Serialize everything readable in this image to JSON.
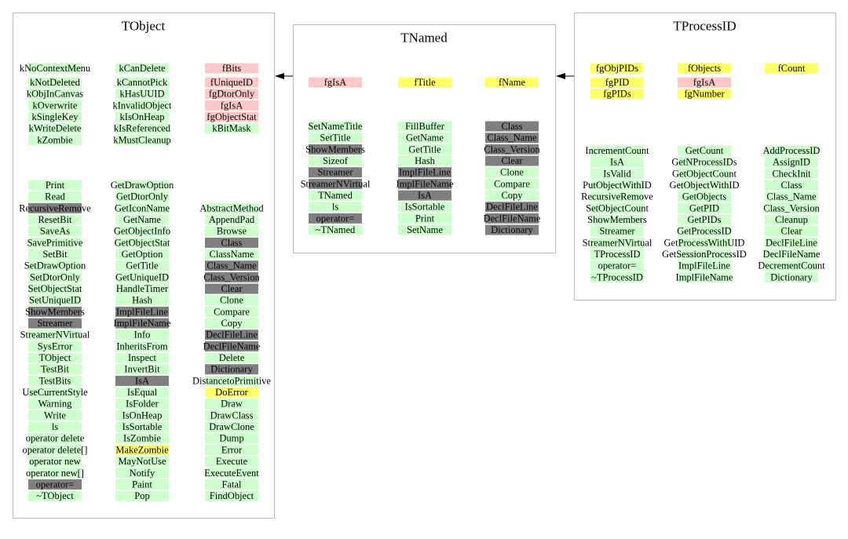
{
  "classes": [
    {
      "title": "TObject",
      "data_members": [
        [
          "kNoContextMenu",
          "kNotDeleted",
          "kObjInCanvas",
          "kOverwrite",
          "kSingleKey",
          "kWriteDelete",
          "kZombie"
        ],
        [
          "kCanDelete",
          "kCannotPick",
          "kHasUUID",
          "kInvalidObject",
          "kIsOnHeap",
          "kIsReferenced",
          "kMustCleanup"
        ],
        [
          {
            "label": "fBits",
            "color": "#ffc8c8"
          },
          {
            "label": "fUniqueID",
            "color": "#ffc8c8"
          },
          {
            "label": "fgDtorOnly",
            "color": "#ffc8c8"
          },
          {
            "label": "fgIsA",
            "color": "#ffc8c8"
          },
          {
            "label": "fgObjectStat",
            "color": "#ffc8c8"
          },
          "kBitMask"
        ]
      ],
      "methods": [
        [
          "Print",
          "Read",
          {
            "label": "RecursiveRemove",
            "color": "#7f7f7f"
          },
          "ResetBit",
          "SaveAs",
          "SavePrimitive",
          "SetBit",
          "SetDrawOption",
          "SetDtorOnly",
          "SetObjectStat",
          "SetUniqueID",
          {
            "label": "ShowMembers",
            "color": "#7f7f7f"
          },
          {
            "label": "Streamer",
            "color": "#7f7f7f"
          },
          "StreamerNVirtual",
          "SysError",
          "TObject",
          "TestBit",
          "TestBits",
          "UseCurrentStyle",
          "Warning",
          "Write",
          "ls",
          "operator delete",
          "operator delete[]",
          "operator new",
          "operator new[]",
          {
            "label": "operator=",
            "color": "#7f7f7f"
          },
          "~TObject"
        ],
        [
          "GetDrawOption",
          "GetDtorOnly",
          "GetIconName",
          "GetName",
          "GetObjectInfo",
          "GetObjectStat",
          "GetOption",
          "GetTitle",
          "GetUniqueID",
          "HandleTimer",
          "Hash",
          {
            "label": "ImplFileLine",
            "color": "#7f7f7f"
          },
          {
            "label": "ImplFileName",
            "color": "#7f7f7f"
          },
          "Info",
          "InheritsFrom",
          "Inspect",
          "InvertBit",
          {
            "label": "IsA",
            "color": "#7f7f7f"
          },
          "IsEqual",
          "IsFolder",
          "IsOnHeap",
          "IsSortable",
          "IsZombie",
          {
            "label": "MakeZombie",
            "color": "#ffff66"
          },
          "MayNotUse",
          "Notify",
          "Paint",
          "Pop"
        ],
        [
          "AbstractMethod",
          "AppendPad",
          "Browse",
          {
            "label": "Class",
            "color": "#7f7f7f"
          },
          "ClassName",
          {
            "label": "Class_Name",
            "color": "#7f7f7f"
          },
          {
            "label": "Class_Version",
            "color": "#7f7f7f"
          },
          {
            "label": "Clear",
            "color": "#7f7f7f"
          },
          "Clone",
          "Compare",
          "Copy",
          {
            "label": "DeclFileLine",
            "color": "#7f7f7f"
          },
          {
            "label": "DeclFileName",
            "color": "#7f7f7f"
          },
          "Delete",
          {
            "label": "Dictionary",
            "color": "#7f7f7f"
          },
          "DistancetoPrimitive",
          {
            "label": "DoError",
            "color": "#ffff66"
          },
          "Draw",
          "DrawClass",
          "DrawClone",
          "Dump",
          "Error",
          "Execute",
          "ExecuteEvent",
          "Fatal",
          "FindObject"
        ]
      ]
    },
    {
      "title": "TNamed",
      "data_members": [
        [
          {
            "label": "fgIsA",
            "color": "#ffc8c8"
          }
        ],
        [
          {
            "label": "fTitle",
            "color": "#ffff66"
          }
        ],
        [
          {
            "label": "fName",
            "color": "#ffff66"
          }
        ]
      ],
      "methods": [
        [
          "SetNameTitle",
          "SetTitle",
          {
            "label": "ShowMembers",
            "color": "#7f7f7f"
          },
          "Sizeof",
          {
            "label": "Streamer",
            "color": "#7f7f7f"
          },
          {
            "label": "StreamerNVirtual",
            "color": "#7f7f7f"
          },
          "TNamed",
          "ls",
          {
            "label": "operator=",
            "color": "#7f7f7f"
          },
          "~TNamed"
        ],
        [
          "FillBuffer",
          "GetName",
          "GetTitle",
          "Hash",
          {
            "label": "ImplFileLine",
            "color": "#7f7f7f"
          },
          {
            "label": "ImplFileName",
            "color": "#7f7f7f"
          },
          {
            "label": "IsA",
            "color": "#7f7f7f"
          },
          "IsSortable",
          "Print",
          "SetName"
        ],
        [
          {
            "label": "Class",
            "color": "#7f7f7f"
          },
          {
            "label": "Class_Name",
            "color": "#7f7f7f"
          },
          {
            "label": "Class_Version",
            "color": "#7f7f7f"
          },
          {
            "label": "Clear",
            "color": "#7f7f7f"
          },
          "Clone",
          "Compare",
          "Copy",
          {
            "label": "DeclFileLine",
            "color": "#7f7f7f"
          },
          {
            "label": "DeclFileName",
            "color": "#7f7f7f"
          },
          {
            "label": "Dictionary",
            "color": "#7f7f7f"
          }
        ]
      ]
    },
    {
      "title": "TProcessID",
      "data_members": [
        [
          {
            "label": "fgObjPIDs",
            "color": "#ffff66"
          },
          {
            "label": "fgPID",
            "color": "#ffff66"
          },
          {
            "label": "fgPIDs",
            "color": "#ffff66"
          }
        ],
        [
          {
            "label": "fObjects",
            "color": "#ffff66"
          },
          {
            "label": "fgIsA",
            "color": "#ffc8c8"
          },
          {
            "label": "fgNumber",
            "color": "#ffff66"
          }
        ],
        [
          {
            "label": "fCount",
            "color": "#ffff66"
          }
        ]
      ],
      "methods": [
        [
          "IncrementCount",
          "IsA",
          "IsValid",
          "PutObjectWithID",
          "RecursiveRemove",
          "SetObjectCount",
          "ShowMembers",
          "Streamer",
          "StreamerNVirtual",
          "TProcessID",
          "operator=",
          "~TProcessID"
        ],
        [
          "GetCount",
          "GetNProcessIDs",
          "GetObjectCount",
          "GetObjectWithID",
          "GetObjects",
          "GetPID",
          "GetPIDs",
          "GetProcessID",
          "GetProcessWithUID",
          "GetSessionProcessID",
          "ImplFileLine",
          "ImplFileName"
        ],
        [
          "AddProcessID",
          "AssignID",
          "CheckInit",
          "Class",
          "Class_Name",
          "Class_Version",
          "Cleanup",
          "Clear",
          "DeclFileLine",
          "DeclFileName",
          "DecrementCount",
          "Dictionary"
        ]
      ]
    }
  ]
}
